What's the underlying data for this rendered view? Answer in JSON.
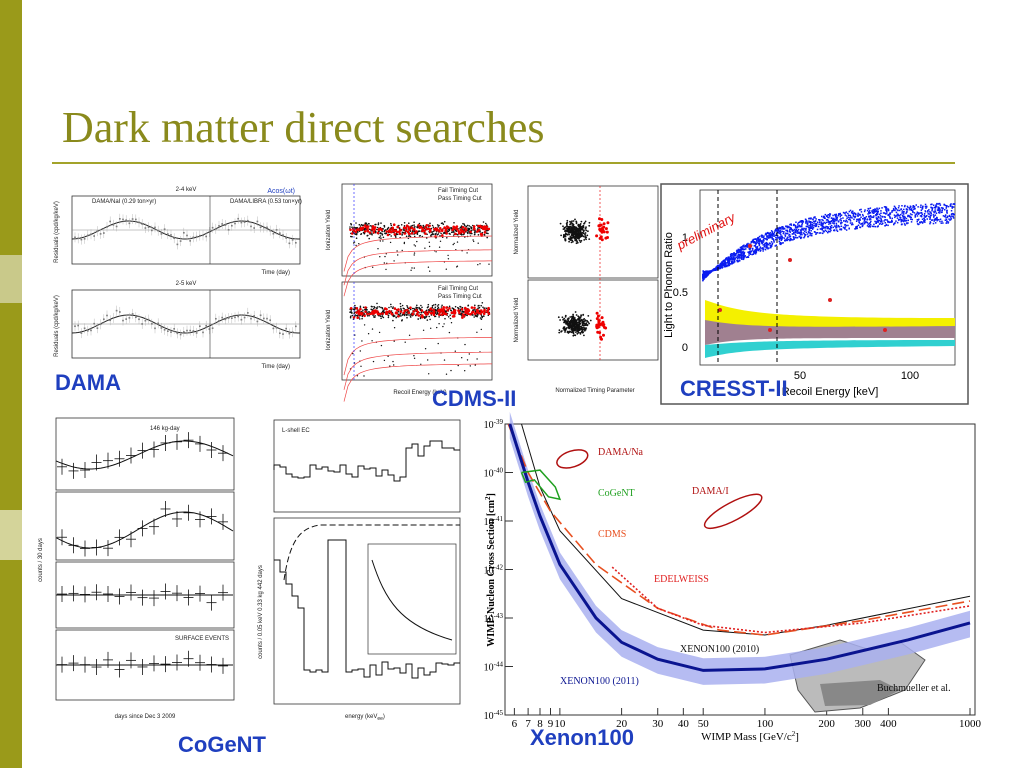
{
  "slide": {
    "title": "Dark matter direct searches",
    "labels": {
      "dama": "DAMA",
      "cdms": "CDMS-II",
      "cresst": "CRESST-II",
      "cogent": "CoGeNT",
      "xenon": "Xenon100"
    },
    "dama_plot": {
      "top_title": "2-4 keV",
      "bottom_title": "2-5 keV",
      "fit": "Acos(ωt)",
      "x_label": "Time (day)",
      "y_label": "Residuals (cpd/kg/keV)",
      "left_legend": "DAMA/NaI (0.29 ton×yr)",
      "right_legend": "DAMA/LIBRA (0.53 ton×yr)"
    },
    "cdms_plot": {
      "y_label": "Ionization Yield",
      "x_label": "Recoil Energy (keV)",
      "legend": [
        "Fail Timing Cut",
        "Pass Timing Cut"
      ],
      "y_label_2": "Normalized Yield",
      "x_label_2": "Normalized Timing Parameter"
    },
    "cresst_plot": {
      "annotation": "preliminary",
      "y_label": "Light to Phonon Ratio",
      "x_label": "Recoil Energy [keV]",
      "y_ticks": [
        "1",
        "0.5",
        "0"
      ],
      "x_ticks": [
        "50",
        "100"
      ]
    },
    "cogent_plot": {
      "exposure": "146 kg-day",
      "x_label": "days since Dec 3 2009",
      "y_label": "counts / 30 days",
      "surface": "SURFACE EVENTS",
      "shell": "L-shell EC",
      "x_label_2": "energy (keV",
      "x_label_2_sub": "ee",
      "x_label_2_end": ")",
      "y_label_2": "counts / 0.05 keV 0.33 kg 442 days"
    },
    "xenon_plot": {
      "y_label": "WIMP-Nucleon Cross Section [cm",
      "y_label_sup": "2",
      "y_label_end": "]",
      "x_label": "WIMP Mass [GeV/c",
      "x_label_sup": "2",
      "x_label_end": "]",
      "x_ticks": [
        "6",
        "7",
        "8",
        "9",
        "10",
        "20",
        "30",
        "40",
        "50",
        "100",
        "200",
        "300",
        "400",
        "1000"
      ],
      "y_ticks": [
        {
          "base": "10",
          "exp": "-39"
        },
        {
          "base": "10",
          "exp": "-40"
        },
        {
          "base": "10",
          "exp": "-41"
        },
        {
          "base": "10",
          "exp": "-42"
        },
        {
          "base": "10",
          "exp": "-43"
        },
        {
          "base": "10",
          "exp": "-44"
        },
        {
          "base": "10",
          "exp": "-45"
        }
      ],
      "curve_labels": [
        "DAMA/Na",
        "CoGeNT",
        "DAMA/I",
        "CDMS",
        "EDELWEISS",
        "XENON100 (2010)",
        "XENON100 (2011)",
        "Buchmueller et al."
      ]
    }
  }
}
